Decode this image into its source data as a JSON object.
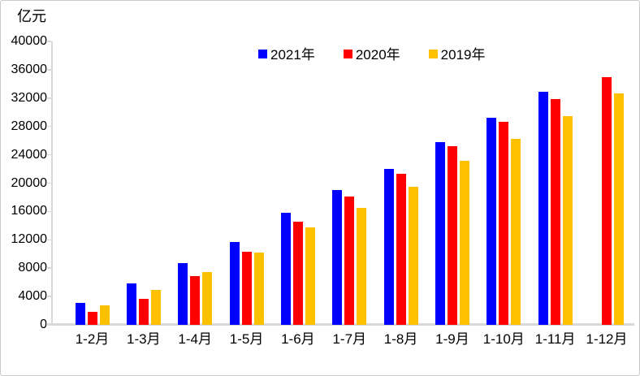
{
  "chart_data": {
    "type": "bar",
    "title": "",
    "ylabel": "亿元",
    "xlabel": "",
    "categories": [
      "1-2月",
      "1-3月",
      "1-4月",
      "1-5月",
      "1-6月",
      "1-7月",
      "1-8月",
      "1-9月",
      "1-10月",
      "1-11月",
      "1-12月"
    ],
    "series": [
      {
        "name": "2021年",
        "color": "#0000FF",
        "values": [
          3150,
          5800,
          8700,
          11700,
          15850,
          19050,
          22000,
          25800,
          29200,
          32900,
          null
        ]
      },
      {
        "name": "2020年",
        "color": "#FF0000",
        "values": [
          1800,
          3700,
          6850,
          10300,
          14550,
          18100,
          21300,
          25250,
          28650,
          31900,
          34950
        ]
      },
      {
        "name": "2019年",
        "color": "#FFC000",
        "values": [
          2750,
          4900,
          7450,
          10200,
          13750,
          16450,
          19450,
          23100,
          26250,
          29500,
          32650
        ]
      }
    ],
    "ylim": [
      0,
      40000
    ],
    "yticks": [
      0,
      4000,
      8000,
      12000,
      16000,
      20000,
      24000,
      28000,
      32000,
      36000,
      40000
    ],
    "grid": false,
    "legend_position": "top",
    "axis_color": "#D9D9D9",
    "text_color": "#000000",
    "background_color": "#FFFFFF"
  }
}
